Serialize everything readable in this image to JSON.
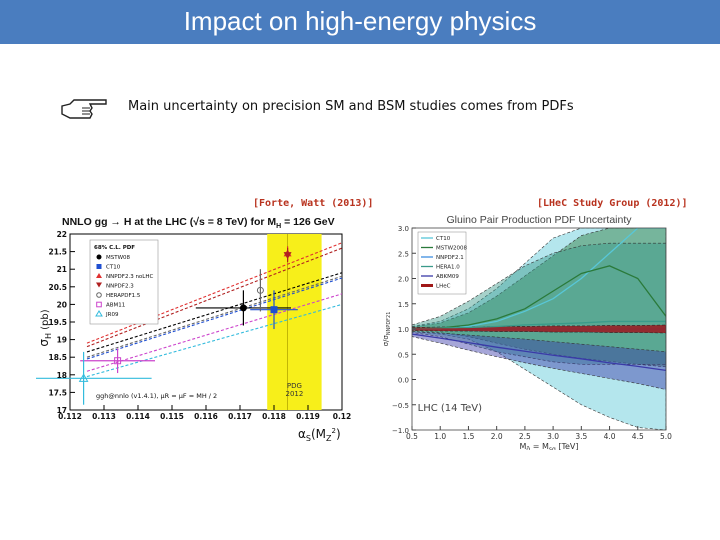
{
  "slide": {
    "title": "Impact on high-energy physics",
    "bullet": "Main uncertainty on precision SM and BSM studies comes from PDFs",
    "bullet_icon": "pointing-hand-icon",
    "citation_left": "[Forte, Watt (2013)]",
    "citation_right": "[LHeC Study Group (2012)]",
    "accent_color": "#4a7dbf"
  },
  "chart_data": [
    {
      "type": "scatter",
      "title": "NNLO gg → H at the LHC (√s = 8 TeV) for M",
      "title_sub": "H",
      "title_tail": " = 126 GeV",
      "xlabel": "α",
      "xlabel_sub": "S",
      "xlabel_tail": "(M",
      "xlabel_sub2": "Z",
      "xlabel_sup2": "2",
      "xlabel_close": ")",
      "ylabel": "σ",
      "ylabel_sub": "H",
      "ylabel_tail": " (pb)",
      "xlim": [
        0.112,
        0.12
      ],
      "ylim": [
        17,
        22
      ],
      "xticks": [
        "0.112",
        "0.113",
        "0.114",
        "0.115",
        "0.116",
        "0.117",
        "0.118",
        "0.119",
        "0.12"
      ],
      "yticks": [
        "17",
        "17.5",
        "18",
        "18.5",
        "19",
        "19.5",
        "20",
        "20.5",
        "21",
        "21.5",
        "22"
      ],
      "band_x": [
        0.1178,
        0.1194
      ],
      "band_label": "PDG 2012",
      "band_label_line1": "PDG",
      "band_label_line2": "2012",
      "legend_header": "68% C.L. PDF",
      "footnote": "ggh@nnlo (v1.4.1), μR = μF = MH / 2",
      "series": [
        {
          "name": "MSTW08",
          "color": "#000000",
          "marker": "circle",
          "alphas": 0.1171,
          "xerr": 0.0014,
          "sigma": 19.9,
          "yerr": 0.5,
          "line": [
            [
              0.1125,
              18.65
            ],
            [
              0.12,
              20.9
            ]
          ]
        },
        {
          "name": "CT10",
          "color": "#1f4fd1",
          "marker": "square",
          "alphas": 0.118,
          "xerr": 0.0007,
          "sigma": 19.85,
          "yerr": 0.55,
          "line": [
            [
              0.1125,
              18.45
            ],
            [
              0.12,
              20.75
            ]
          ]
        },
        {
          "name": "NNPDF2.3 noLHC",
          "color": "#e03030",
          "marker": "triangle",
          "alphas": 0.1184,
          "xerr": 0.0,
          "sigma": 21.45,
          "yerr": 0.2,
          "line": [
            [
              0.1125,
              18.9
            ],
            [
              0.12,
              21.75
            ]
          ]
        },
        {
          "name": "NNPDF2.3",
          "color": "#b02020",
          "marker": "triangle-down",
          "alphas": 0.1184,
          "xerr": 0.0,
          "sigma": 21.4,
          "yerr": 0.2,
          "line": [
            [
              0.1125,
              18.8
            ],
            [
              0.12,
              21.6
            ]
          ]
        },
        {
          "name": "HERAPDF1.5",
          "color": "#666666",
          "marker": "circle-open",
          "alphas": 0.1176,
          "xerr": 0.0,
          "sigma": 20.4,
          "yerr": 0.6,
          "line": [
            [
              0.1125,
              18.5
            ],
            [
              0.12,
              20.8
            ]
          ]
        },
        {
          "name": "ABM11",
          "color": "#cc44cc",
          "marker": "square-open",
          "alphas": 0.1134,
          "xerr": 0.0011,
          "sigma": 18.4,
          "yerr": 0.35,
          "line": [
            [
              0.1125,
              18.1
            ],
            [
              0.12,
              20.3
            ]
          ]
        },
        {
          "name": "JR09",
          "color": "#33bbdd",
          "marker": "triangle-open",
          "alphas": 0.1124,
          "xerr": 0.002,
          "sigma": 17.9,
          "yerr": 0.75,
          "line": [
            [
              0.1125,
              17.95
            ],
            [
              0.12,
              20.0
            ]
          ]
        }
      ]
    },
    {
      "type": "area",
      "title": "Gluino Pair Production PDF Uncertainty",
      "xlabel": "M",
      "xlabel_sub": "g̃",
      "xlabel_mid": " = M",
      "xlabel_sub2": "sq",
      "xlabel_tail": " [TeV]",
      "ylabel": "σ/σ",
      "ylabel_sub": "NNPDF21",
      "xlim": [
        0.5,
        5.0
      ],
      "ylim": [
        -1.0,
        3.0
      ],
      "xticks": [
        "0.5",
        "1.0",
        "1.5",
        "2.0",
        "2.5",
        "3.0",
        "3.5",
        "4.0",
        "4.5",
        "5.0"
      ],
      "yticks": [
        "−1.0",
        "−0.5",
        "0.0",
        "0.5",
        "1.0",
        "1.5",
        "2.0",
        "2.5",
        "3.0"
      ],
      "annotation": "LHC (14 TeV)",
      "x": [
        0.5,
        1.0,
        1.5,
        2.0,
        2.5,
        3.0,
        3.5,
        4.0,
        4.5,
        5.0
      ],
      "series": [
        {
          "name": "CT10",
          "color": "#58c7d8",
          "lower": [
            0.95,
            0.9,
            0.8,
            0.55,
            0.2,
            -0.15,
            -0.5,
            -0.75,
            -0.95,
            -1.0
          ],
          "upper": [
            1.05,
            1.15,
            1.4,
            1.8,
            2.3,
            2.8,
            3.0,
            3.0,
            3.0,
            3.0
          ],
          "central": [
            1.0,
            1.0,
            1.05,
            1.15,
            1.35,
            1.6,
            2.0,
            2.5,
            3.0,
            3.0
          ]
        },
        {
          "name": "MSTW2008",
          "color": "#2a7a3a",
          "lower": [
            0.97,
            0.93,
            0.85,
            0.72,
            0.6,
            0.5,
            0.42,
            0.36,
            0.3,
            0.25
          ],
          "upper": [
            1.04,
            1.12,
            1.32,
            1.65,
            2.05,
            2.45,
            2.85,
            3.0,
            3.0,
            3.0
          ],
          "central": [
            1.0,
            1.02,
            1.08,
            1.2,
            1.4,
            1.75,
            2.1,
            2.25,
            2.0,
            1.25
          ]
        },
        {
          "name": "NNPDF2.1",
          "color": "#3e8fe0",
          "lower": [
            0.98,
            0.97,
            0.96,
            0.95,
            0.95,
            0.94,
            0.94,
            0.93,
            0.93,
            0.93
          ],
          "upper": [
            1.02,
            1.03,
            1.04,
            1.05,
            1.05,
            1.06,
            1.06,
            1.07,
            1.07,
            1.07
          ],
          "central": [
            1.0,
            1.0,
            1.0,
            1.0,
            1.0,
            1.0,
            1.0,
            1.0,
            1.0,
            1.0
          ]
        },
        {
          "name": "HERA1.0",
          "color": "#3a9a8a",
          "lower": [
            0.93,
            0.85,
            0.7,
            0.55,
            0.45,
            0.35,
            0.3,
            0.3,
            0.3,
            0.3
          ],
          "upper": [
            1.08,
            1.25,
            1.55,
            1.9,
            2.25,
            2.5,
            2.65,
            2.7,
            2.7,
            2.7
          ],
          "central": [
            1.0,
            1.02,
            1.03,
            1.05,
            1.08,
            1.1,
            1.12,
            1.15,
            1.15,
            1.15
          ]
        },
        {
          "name": "ABKM09",
          "color": "#3a3aa8",
          "lower": [
            0.85,
            0.72,
            0.58,
            0.45,
            0.33,
            0.22,
            0.12,
            0.02,
            -0.08,
            -0.2
          ],
          "upper": [
            0.95,
            0.92,
            0.88,
            0.84,
            0.8,
            0.75,
            0.7,
            0.65,
            0.6,
            0.55
          ],
          "central": [
            0.9,
            0.82,
            0.73,
            0.64,
            0.56,
            0.48,
            0.41,
            0.33,
            0.26,
            0.18
          ]
        },
        {
          "name": "LHeC",
          "color": "#a01818",
          "lower": [
            0.97,
            0.96,
            0.96,
            0.95,
            0.95,
            0.94,
            0.94,
            0.93,
            0.93,
            0.92
          ],
          "upper": [
            1.03,
            1.04,
            1.04,
            1.05,
            1.05,
            1.06,
            1.06,
            1.07,
            1.07,
            1.08
          ],
          "central": [
            1.0,
            1.0,
            1.0,
            1.0,
            1.0,
            1.0,
            1.0,
            1.0,
            1.0,
            1.0
          ]
        }
      ]
    }
  ]
}
